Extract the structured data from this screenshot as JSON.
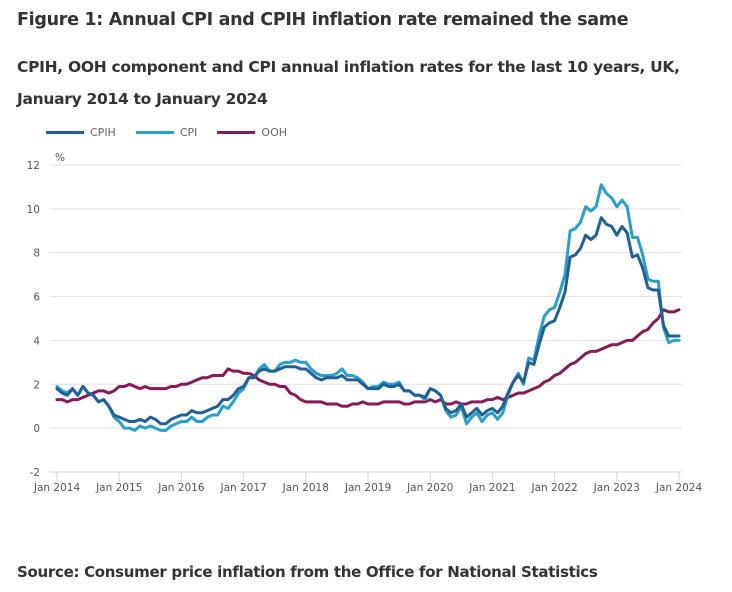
{
  "figure": {
    "title": "Figure 1: Annual CPI and CPIH inflation rate remained the same",
    "subtitle": "CPIH, OOH component and CPI annual inflation rates for the last 10 years, UK, January 2014 to January 2024",
    "source": "Source: Consumer price inflation from the Office for National Statistics"
  },
  "chart_data": {
    "type": "line",
    "title": "Figure 1: Annual CPI and CPIH inflation rate remained the same",
    "subtitle": "CPIH, OOH component and CPI annual inflation rates for the last 10 years, UK, January 2014 to January 2024",
    "xlabel": "",
    "ylabel": "%",
    "ylim": [
      -2,
      12
    ],
    "yticks": [
      -2,
      0,
      2,
      4,
      6,
      8,
      10,
      12
    ],
    "xtick_labels": [
      "Jan 2014",
      "Jan 2015",
      "Jan 2016",
      "Jan 2017",
      "Jan 2018",
      "Jan 2019",
      "Jan 2020",
      "Jan 2021",
      "Jan 2022",
      "Jan 2023",
      "Jan 2024"
    ],
    "x_start": "Jan 2014",
    "x_end": "Jan 2024",
    "frequency": "monthly",
    "grid": true,
    "legend_position": "top-left",
    "series": [
      {
        "name": "CPIH",
        "color": "#206095",
        "values": [
          1.8,
          1.6,
          1.5,
          1.8,
          1.5,
          1.9,
          1.6,
          1.5,
          1.2,
          1.3,
          1.0,
          0.6,
          0.5,
          0.4,
          0.3,
          0.3,
          0.4,
          0.3,
          0.5,
          0.4,
          0.2,
          0.2,
          0.4,
          0.5,
          0.6,
          0.6,
          0.8,
          0.7,
          0.7,
          0.8,
          0.9,
          1.0,
          1.3,
          1.3,
          1.5,
          1.8,
          1.9,
          2.3,
          2.3,
          2.6,
          2.7,
          2.6,
          2.6,
          2.7,
          2.8,
          2.8,
          2.8,
          2.7,
          2.7,
          2.5,
          2.3,
          2.2,
          2.3,
          2.3,
          2.3,
          2.4,
          2.2,
          2.2,
          2.2,
          2.0,
          1.8,
          1.8,
          1.8,
          2.0,
          1.9,
          1.9,
          2.0,
          1.7,
          1.7,
          1.5,
          1.5,
          1.4,
          1.8,
          1.7,
          1.5,
          0.9,
          0.7,
          0.8,
          1.1,
          0.5,
          0.7,
          0.9,
          0.6,
          0.8,
          0.9,
          0.7,
          1.0,
          1.6,
          2.1,
          2.4,
          2.1,
          3.0,
          2.9,
          3.8,
          4.6,
          4.8,
          4.9,
          5.5,
          6.2,
          7.8,
          7.9,
          8.2,
          8.8,
          8.6,
          8.8,
          9.6,
          9.3,
          9.2,
          8.8,
          9.2,
          8.9,
          7.8,
          7.9,
          7.3,
          6.4,
          6.3,
          6.3,
          4.7,
          4.2,
          4.2,
          4.2
        ]
      },
      {
        "name": "CPI",
        "color": "#27a0cc",
        "values": [
          1.9,
          1.7,
          1.6,
          1.8,
          1.5,
          1.9,
          1.6,
          1.5,
          1.2,
          1.3,
          1.0,
          0.5,
          0.3,
          0.0,
          0.0,
          -0.1,
          0.1,
          0.0,
          0.1,
          0.0,
          -0.1,
          -0.1,
          0.1,
          0.2,
          0.3,
          0.3,
          0.5,
          0.3,
          0.3,
          0.5,
          0.6,
          0.6,
          1.0,
          0.9,
          1.2,
          1.6,
          1.8,
          2.3,
          2.3,
          2.7,
          2.9,
          2.6,
          2.6,
          2.9,
          3.0,
          3.0,
          3.1,
          3.0,
          3.0,
          2.7,
          2.5,
          2.4,
          2.4,
          2.4,
          2.5,
          2.7,
          2.4,
          2.4,
          2.3,
          2.1,
          1.8,
          1.9,
          1.9,
          2.1,
          2.0,
          2.0,
          2.1,
          1.7,
          1.7,
          1.5,
          1.5,
          1.3,
          1.8,
          1.7,
          1.5,
          0.8,
          0.5,
          0.6,
          1.0,
          0.2,
          0.5,
          0.7,
          0.3,
          0.6,
          0.7,
          0.4,
          0.7,
          1.5,
          2.1,
          2.5,
          2.0,
          3.2,
          3.1,
          4.2,
          5.1,
          5.4,
          5.5,
          6.2,
          7.0,
          9.0,
          9.1,
          9.4,
          10.1,
          9.9,
          10.1,
          11.1,
          10.7,
          10.5,
          10.1,
          10.4,
          10.1,
          8.7,
          8.7,
          7.9,
          6.8,
          6.7,
          6.7,
          4.6,
          3.9,
          4.0,
          4.0
        ]
      },
      {
        "name": "OOH",
        "color": "#871a5b",
        "values": [
          1.3,
          1.3,
          1.2,
          1.3,
          1.3,
          1.4,
          1.5,
          1.6,
          1.7,
          1.7,
          1.6,
          1.7,
          1.9,
          1.9,
          2.0,
          1.9,
          1.8,
          1.9,
          1.8,
          1.8,
          1.8,
          1.8,
          1.9,
          1.9,
          2.0,
          2.0,
          2.1,
          2.2,
          2.3,
          2.3,
          2.4,
          2.4,
          2.4,
          2.7,
          2.6,
          2.6,
          2.5,
          2.5,
          2.4,
          2.2,
          2.1,
          2.0,
          2.0,
          1.9,
          1.9,
          1.6,
          1.5,
          1.3,
          1.2,
          1.2,
          1.2,
          1.2,
          1.1,
          1.1,
          1.1,
          1.0,
          1.0,
          1.1,
          1.1,
          1.2,
          1.1,
          1.1,
          1.1,
          1.2,
          1.2,
          1.2,
          1.2,
          1.1,
          1.1,
          1.2,
          1.2,
          1.2,
          1.3,
          1.2,
          1.3,
          1.1,
          1.1,
          1.2,
          1.1,
          1.1,
          1.2,
          1.2,
          1.2,
          1.3,
          1.3,
          1.4,
          1.3,
          1.4,
          1.5,
          1.6,
          1.6,
          1.7,
          1.8,
          1.9,
          2.1,
          2.2,
          2.4,
          2.5,
          2.7,
          2.9,
          3.0,
          3.2,
          3.4,
          3.5,
          3.5,
          3.6,
          3.7,
          3.8,
          3.8,
          3.9,
          4.0,
          4.0,
          4.2,
          4.4,
          4.5,
          4.8,
          5.0,
          5.4,
          5.3,
          5.3,
          5.4
        ]
      }
    ]
  }
}
